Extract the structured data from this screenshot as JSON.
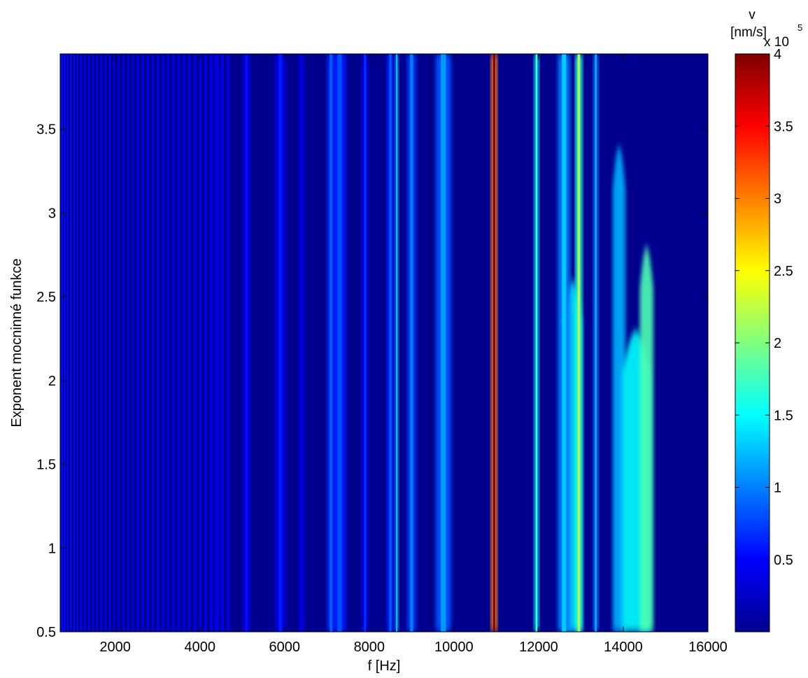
{
  "chart_data": {
    "type": "heatmap",
    "xlabel": "f [Hz]",
    "ylabel": "Exponent mocninné funkce",
    "xlim": [
      700,
      16000
    ],
    "ylim": [
      0.5,
      3.95
    ],
    "xticks": [
      "2000",
      "4000",
      "6000",
      "8000",
      "10000",
      "12000",
      "14000",
      "16000"
    ],
    "yticks": [
      "0.5",
      "1",
      "1.5",
      "2",
      "2.5",
      "3",
      "3.5"
    ],
    "colormap": "jet",
    "background_color": "#00008F",
    "colorbar": {
      "title_line1": "v",
      "title_line2": "[nm/s]",
      "multiplier": "x 10",
      "exponent": "5",
      "range": [
        0,
        4
      ],
      "ticks": [
        "0.5",
        "1",
        "1.5",
        "2",
        "2.5",
        "3",
        "3.5",
        "4"
      ]
    },
    "low_frequency_bands": {
      "from": 700,
      "to": 4700,
      "approx_count": 38
    },
    "bands": [
      {
        "f": 4400,
        "width": 120,
        "value": 0.45
      },
      {
        "f": 5100,
        "width": 150,
        "value": 0.55
      },
      {
        "f": 5900,
        "width": 220,
        "value": 0.6
      },
      {
        "f": 6400,
        "width": 120,
        "value": 0.45
      },
      {
        "f": 7100,
        "width": 180,
        "value": 0.9
      },
      {
        "f": 7300,
        "width": 300,
        "value": 0.8
      },
      {
        "f": 7900,
        "width": 130,
        "value": 0.7
      },
      {
        "f": 8500,
        "width": 160,
        "value": 0.85
      },
      {
        "f": 8650,
        "width": 80,
        "value": 1.4
      },
      {
        "f": 9000,
        "width": 200,
        "value": 1.0
      },
      {
        "f": 9750,
        "width": 350,
        "value": 1.1
      },
      {
        "f": 10950,
        "width": 140,
        "value": 4.0
      },
      {
        "f": 11950,
        "width": 110,
        "value": 1.8
      },
      {
        "f": 12600,
        "width": 280,
        "value": 1.3
      },
      {
        "f": 12950,
        "width": 160,
        "value": 2.2
      },
      {
        "f": 13350,
        "width": 120,
        "value": 1.2
      }
    ],
    "blobs": [
      {
        "f": 12800,
        "width": 450,
        "e_top": 2.6,
        "value": 1.4
      },
      {
        "f": 13900,
        "width": 300,
        "e_top": 3.4,
        "value": 1.2
      },
      {
        "f": 14300,
        "width": 650,
        "e_top": 2.3,
        "value": 1.5
      },
      {
        "f": 14550,
        "width": 320,
        "e_top": 2.8,
        "value": 1.8
      }
    ]
  }
}
